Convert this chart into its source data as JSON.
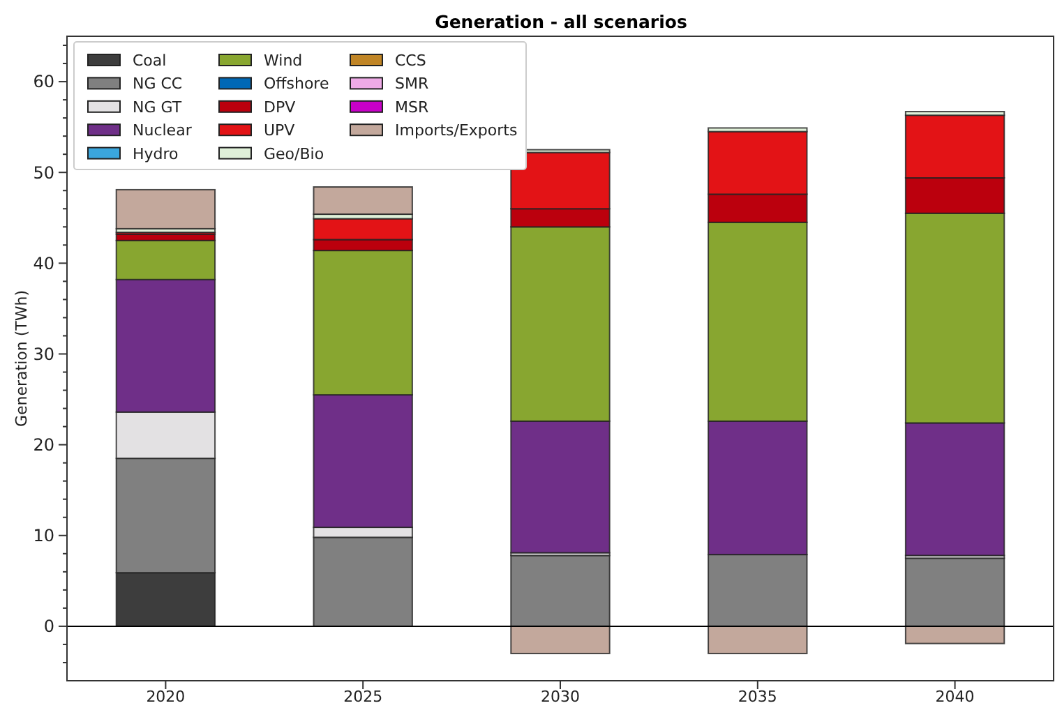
{
  "chart_data": {
    "type": "bar",
    "title": "Generation - all scenarios",
    "ylabel": "Generation (TWh)",
    "stacked": true,
    "categories": [
      "2020",
      "2025",
      "2030",
      "2035",
      "2040"
    ],
    "series": [
      {
        "name": "Coal",
        "color": "#3d3d3d",
        "values": [
          5.9,
          0,
          0,
          0,
          0
        ]
      },
      {
        "name": "NG CC",
        "color": "#808080",
        "values": [
          12.6,
          9.8,
          7.8,
          7.9,
          7.5
        ]
      },
      {
        "name": "NG GT",
        "color": "#e3e1e3",
        "values": [
          5.1,
          1.1,
          0.3,
          null,
          0.3
        ]
      },
      {
        "name": "Nuclear",
        "color": "#6f2f88",
        "values": [
          14.6,
          14.6,
          14.5,
          14.7,
          14.6
        ]
      },
      {
        "name": "Hydro",
        "color": "#3aa6dd",
        "values": [
          0,
          0,
          0,
          0,
          0
        ]
      },
      {
        "name": "Wind",
        "color": "#88a630",
        "values": [
          4.3,
          15.9,
          21.4,
          21.9,
          23.1
        ]
      },
      {
        "name": "Offshore",
        "color": "#0068b5",
        "values": [
          0,
          0,
          0,
          0,
          0
        ]
      },
      {
        "name": "DPV",
        "color": "#bb000d",
        "values": [
          0.7,
          1.2,
          2.0,
          3.1,
          3.9
        ]
      },
      {
        "name": "UPV",
        "color": "#e31316",
        "values": [
          0.2,
          2.3,
          6.2,
          6.9,
          6.9
        ]
      },
      {
        "name": "Geo/Bio",
        "color": "#dff0d8",
        "values": [
          0.4,
          0.5,
          0.3,
          0.4,
          0.4
        ]
      },
      {
        "name": "CCS",
        "color": "#c08526",
        "values": [
          0,
          0,
          0,
          0,
          0
        ]
      },
      {
        "name": "SMR",
        "color": "#eeaae6",
        "values": [
          0,
          0,
          0,
          0,
          0
        ]
      },
      {
        "name": "MSR",
        "color": "#c800c8",
        "values": [
          0,
          0,
          0,
          0,
          0
        ]
      },
      {
        "name": "Imports/Exports",
        "color": "#c3a89c",
        "values": [
          4.3,
          3.0,
          -3.0,
          -3.0,
          -1.9
        ]
      }
    ],
    "ylim": [
      -6,
      65
    ],
    "yticks": [
      {
        "value": -4,
        "label": null
      },
      {
        "value": -2,
        "label": null
      },
      0,
      {
        "value": 2,
        "label": null
      },
      {
        "value": 4,
        "label": null
      },
      {
        "value": 6,
        "label": null
      },
      {
        "value": 8,
        "label": null
      },
      10,
      {
        "value": 12,
        "label": null
      },
      {
        "value": 14,
        "label": null
      },
      {
        "value": 16,
        "label": null
      },
      {
        "value": 18,
        "label": null
      },
      20,
      {
        "value": 22,
        "label": null
      },
      {
        "value": 24,
        "label": null
      },
      {
        "value": 26,
        "label": null
      },
      {
        "value": 28,
        "label": null
      },
      30,
      {
        "value": 32,
        "label": null
      },
      {
        "value": 34,
        "label": null
      },
      {
        "value": 36,
        "label": null
      },
      {
        "value": 38,
        "label": null
      },
      40,
      {
        "value": 42,
        "label": null
      },
      {
        "value": 44,
        "label": null
      },
      {
        "value": 46,
        "label": null
      },
      {
        "value": 48,
        "label": null
      },
      50,
      {
        "value": 52,
        "label": null
      },
      {
        "value": 54,
        "label": null
      },
      {
        "value": 56,
        "label": null
      },
      {
        "value": 58,
        "label": null
      },
      60,
      {
        "value": 62,
        "label": null
      },
      {
        "value": 64,
        "label": null
      }
    ],
    "ref_lines": [
      {
        "axis": "y",
        "value": 0,
        "color": "#000000"
      }
    ],
    "grid": false,
    "legend": "top left"
  }
}
